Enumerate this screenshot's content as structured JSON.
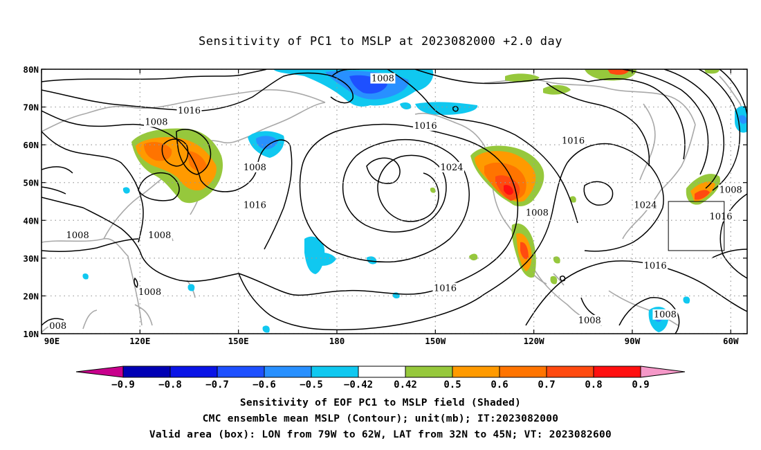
{
  "title": "Sensitivity of PC1 to MSLP at 2023082000 +2.0 day",
  "map": {
    "lon_range": [
      90,
      305
    ],
    "lat_range": [
      10,
      80
    ],
    "lon_ticks": [
      {
        "lon": 90,
        "label": "90E"
      },
      {
        "lon": 120,
        "label": "120E"
      },
      {
        "lon": 150,
        "label": "150E"
      },
      {
        "lon": 180,
        "label": "180"
      },
      {
        "lon": 210,
        "label": "150W"
      },
      {
        "lon": 240,
        "label": "120W"
      },
      {
        "lon": 270,
        "label": "90W"
      },
      {
        "lon": 300,
        "label": "60W"
      }
    ],
    "lat_ticks": [
      {
        "lat": 80,
        "label": "80N"
      },
      {
        "lat": 70,
        "label": "70N"
      },
      {
        "lat": 60,
        "label": "60N"
      },
      {
        "lat": 50,
        "label": "50N"
      },
      {
        "lat": 40,
        "label": "40N"
      },
      {
        "lat": 30,
        "label": "30N"
      },
      {
        "lat": 20,
        "label": "20N"
      },
      {
        "lat": 10,
        "label": "10N"
      }
    ],
    "grid": true,
    "valid_box": {
      "lon_w": 281,
      "lon_e": 298,
      "lat_s": 32,
      "lat_n": 45
    },
    "contour_labels": [
      {
        "text": "1008",
        "lon": 194,
        "lat": 77.5
      },
      {
        "text": "1016",
        "lon": 135,
        "lat": 69
      },
      {
        "text": "1008",
        "lon": 125,
        "lat": 66
      },
      {
        "text": "1016",
        "lon": 207,
        "lat": 65
      },
      {
        "text": "1016",
        "lon": 252,
        "lat": 61
      },
      {
        "text": "1024",
        "lon": 215,
        "lat": 54
      },
      {
        "text": "1008",
        "lon": 155,
        "lat": 54
      },
      {
        "text": "1008",
        "lon": 300,
        "lat": 48
      },
      {
        "text": "1016",
        "lon": 155,
        "lat": 44
      },
      {
        "text": "1024",
        "lon": 274,
        "lat": 44
      },
      {
        "text": "1008",
        "lon": 241,
        "lat": 42
      },
      {
        "text": "1016",
        "lon": 297,
        "lat": 41
      },
      {
        "text": "1008",
        "lon": 101,
        "lat": 36
      },
      {
        "text": "1008",
        "lon": 126,
        "lat": 36
      },
      {
        "text": "1016",
        "lon": 277,
        "lat": 28
      },
      {
        "text": "1016",
        "lon": 213,
        "lat": 22
      },
      {
        "text": "1008",
        "lon": 123,
        "lat": 21
      },
      {
        "text": "1008",
        "lon": 257,
        "lat": 13.5
      },
      {
        "text": "1008",
        "lon": 280,
        "lat": 15
      },
      {
        "text": "008",
        "lon": 95,
        "lat": 12
      }
    ]
  },
  "shading": {
    "colors": {
      "neg_09": "#c8008c",
      "neg_08": "#0000b4",
      "neg_07": "#0a14e6",
      "neg_06": "#1e50ff",
      "neg_05": "#2890ff",
      "neg_042": "#10c8f0",
      "zero": "#ffffff",
      "pos_042": "#96c83c",
      "pos_05": "#ff9a00",
      "pos_06": "#ff7400",
      "pos_07": "#ff4a10",
      "pos_08": "#ff1010",
      "pos_09": "#f598c8"
    }
  },
  "colorbar": {
    "labels": [
      "−0.9",
      "−0.8",
      "−0.7",
      "−0.6",
      "−0.5",
      "−0.42",
      "0.42",
      "0.5",
      "0.6",
      "0.7",
      "0.8",
      "0.9"
    ],
    "colors": [
      "#c8008c",
      "#0000b4",
      "#0a14e6",
      "#1e50ff",
      "#2890ff",
      "#10c8f0",
      "#ffffff",
      "#96c83c",
      "#ff9a00",
      "#ff7400",
      "#ff4a10",
      "#ff1010",
      "#f598c8"
    ]
  },
  "captions": {
    "line1": "Sensitivity of EOF PC1 to MSLP field (Shaded)",
    "line2": "CMC ensemble mean MSLP (Contour); unit(mb); IT:2023082000",
    "line3": "Valid area (box): LON from 79W to 62W, LAT from 32N to 45N; VT: 2023082600"
  }
}
